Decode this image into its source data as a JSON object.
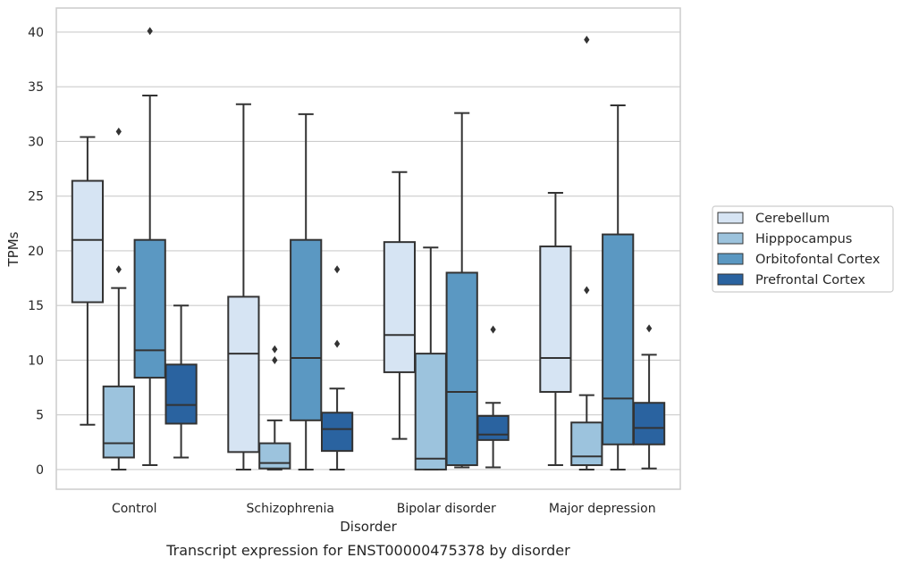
{
  "chart_data": {
    "type": "boxplot",
    "title": "",
    "caption": "Transcript expression for ENST00000475378 by disorder",
    "xlabel": "Disorder",
    "ylabel": "TPMs",
    "ylim": [
      -1.8,
      42.2
    ],
    "yticks": [
      0,
      5,
      10,
      15,
      20,
      25,
      30,
      35,
      40
    ],
    "grid": "horizontal",
    "legend_position": "right",
    "categories": [
      "Control",
      "Schizophrenia",
      "Bipolar disorder",
      "Major depression"
    ],
    "series": [
      {
        "name": "Cerebellum",
        "color": "#d6e4f3",
        "boxes": [
          {
            "whislo": 4.1,
            "q1": 15.3,
            "med": 21.0,
            "q3": 26.4,
            "whishi": 30.4,
            "fliers": []
          },
          {
            "whislo": 0.0,
            "q1": 1.6,
            "med": 10.6,
            "q3": 15.8,
            "whishi": 33.4,
            "fliers": []
          },
          {
            "whislo": 2.8,
            "q1": 8.9,
            "med": 12.3,
            "q3": 20.8,
            "whishi": 27.2,
            "fliers": []
          },
          {
            "whislo": 0.4,
            "q1": 7.1,
            "med": 10.2,
            "q3": 20.4,
            "whishi": 25.3,
            "fliers": []
          }
        ]
      },
      {
        "name": "Hipppocampus",
        "color": "#9cc3dd",
        "boxes": [
          {
            "whislo": 0.0,
            "q1": 1.1,
            "med": 2.4,
            "q3": 7.6,
            "whishi": 16.6,
            "fliers": [
              18.3,
              30.9
            ]
          },
          {
            "whislo": 0.0,
            "q1": 0.1,
            "med": 0.6,
            "q3": 2.4,
            "whishi": 4.5,
            "fliers": [
              10.0,
              11.0
            ]
          },
          {
            "whislo": 0.0,
            "q1": 0.0,
            "med": 1.0,
            "q3": 10.6,
            "whishi": 20.3,
            "fliers": []
          },
          {
            "whislo": 0.0,
            "q1": 0.4,
            "med": 1.2,
            "q3": 4.3,
            "whishi": 6.8,
            "fliers": [
              16.4,
              39.3
            ]
          }
        ]
      },
      {
        "name": "Orbitofontal Cortex",
        "color": "#5b98c2",
        "boxes": [
          {
            "whislo": 0.4,
            "q1": 8.4,
            "med": 10.9,
            "q3": 21.0,
            "whishi": 34.2,
            "fliers": [
              40.1
            ]
          },
          {
            "whislo": 0.0,
            "q1": 4.5,
            "med": 10.2,
            "q3": 21.0,
            "whishi": 32.5,
            "fliers": []
          },
          {
            "whislo": 0.2,
            "q1": 0.4,
            "med": 7.1,
            "q3": 18.0,
            "whishi": 32.6,
            "fliers": []
          },
          {
            "whislo": 0.0,
            "q1": 2.3,
            "med": 6.5,
            "q3": 21.5,
            "whishi": 33.3,
            "fliers": []
          }
        ]
      },
      {
        "name": "Prefrontal Cortex",
        "color": "#2a63a0",
        "boxes": [
          {
            "whislo": 1.1,
            "q1": 4.2,
            "med": 5.9,
            "q3": 9.6,
            "whishi": 15.0,
            "fliers": []
          },
          {
            "whislo": 0.0,
            "q1": 1.7,
            "med": 3.7,
            "q3": 5.2,
            "whishi": 7.4,
            "fliers": [
              11.5,
              18.3
            ]
          },
          {
            "whislo": 0.2,
            "q1": 2.7,
            "med": 3.2,
            "q3": 4.9,
            "whishi": 6.1,
            "fliers": [
              12.8
            ]
          },
          {
            "whislo": 0.1,
            "q1": 2.3,
            "med": 3.8,
            "q3": 6.1,
            "whishi": 10.5,
            "fliers": [
              12.9
            ]
          }
        ]
      }
    ]
  },
  "colors": {
    "grid": "#cccccc",
    "axes_edge": "#cccccc",
    "line": "#333333",
    "text": "#262626"
  }
}
